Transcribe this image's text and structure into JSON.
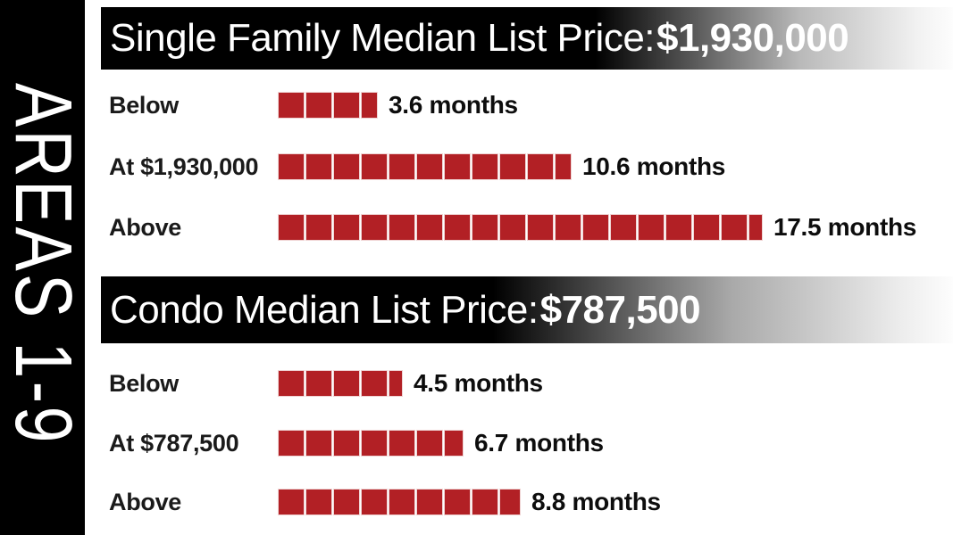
{
  "sidebar": {
    "label": "AREAS 1-9"
  },
  "colors": {
    "square_red": "#B22025",
    "rail_bg": "#000000",
    "header_bg_start": "#000000",
    "header_bg_end": "#FDFDFD",
    "header_text": "#FFFFFF",
    "body_text": "#111111"
  },
  "chart_data": [
    {
      "type": "bar",
      "title": "Single Family Median List Price: $1,930,000",
      "title_prefix": "Single Family Median List Price: ",
      "title_price": "$1,930,000",
      "unit": "months",
      "square_represents_months": 1,
      "categories": [
        "Below",
        "At $1,930,000",
        "Above"
      ],
      "values": [
        3.6,
        10.6,
        17.5
      ],
      "rows": [
        {
          "label": "Below",
          "months": 3.6,
          "display": "3.6 months"
        },
        {
          "label": "At $1,930,000",
          "months": 10.6,
          "display": "10.6 months"
        },
        {
          "label": "Above",
          "months": 17.5,
          "display": "17.5 months"
        }
      ]
    },
    {
      "type": "bar",
      "title": "Condo Median List Price: $787,500",
      "title_prefix": "Condo Median List Price: ",
      "title_price": "$787,500",
      "unit": "months",
      "square_represents_months": 1,
      "categories": [
        "Below",
        "At $787,500",
        "Above"
      ],
      "values": [
        4.5,
        6.7,
        8.8
      ],
      "rows": [
        {
          "label": "Below",
          "months": 4.5,
          "display": "4.5 months"
        },
        {
          "label": "At $787,500",
          "months": 6.7,
          "display": "6.7 months"
        },
        {
          "label": "Above",
          "months": 8.8,
          "display": "8.8 months"
        }
      ]
    }
  ]
}
